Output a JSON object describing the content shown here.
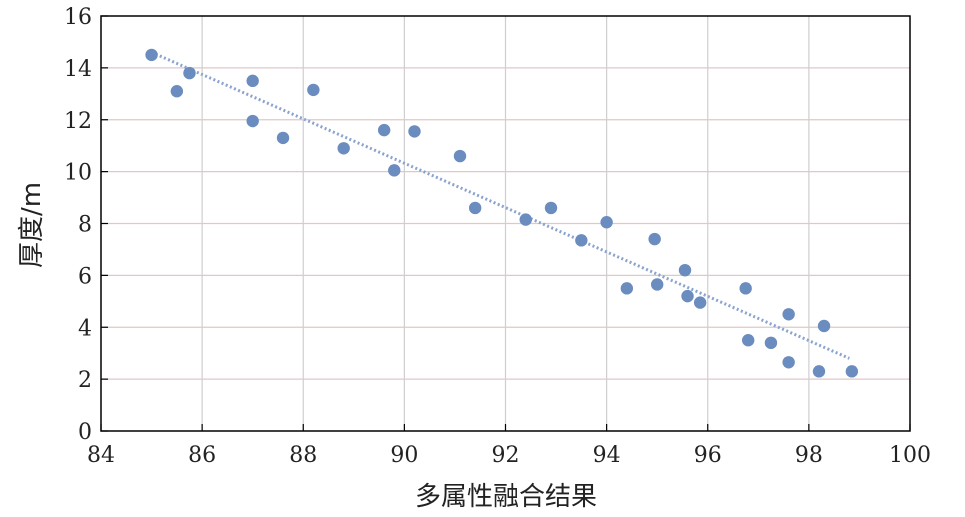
{
  "chart_data": {
    "type": "scatter",
    "xlabel": "多属性融合结果",
    "ylabel": "厚度/m",
    "xlim": [
      84,
      100
    ],
    "ylim": [
      0,
      16
    ],
    "xticks": [
      84,
      86,
      88,
      90,
      92,
      94,
      96,
      98,
      100
    ],
    "yticks": [
      0,
      2,
      4,
      6,
      8,
      10,
      12,
      14,
      16
    ],
    "grid": true,
    "colors": {
      "points": "#6b8cbf",
      "trend": "#8aa3cf",
      "grid_x": "#cfcfcf",
      "grid_y": "#e3c7c7"
    },
    "series": [
      {
        "x": [
          85.0,
          85.5,
          85.75,
          87.0,
          87.0,
          87.6,
          88.2,
          88.8,
          89.6,
          89.8,
          90.2,
          91.1,
          91.4,
          92.4,
          92.9,
          93.5,
          94.0,
          94.4,
          94.95,
          95.0,
          95.55,
          95.6,
          95.85,
          96.75,
          96.8,
          97.25,
          97.6,
          97.6,
          98.2,
          98.3,
          98.85
        ],
        "y": [
          14.5,
          13.1,
          13.8,
          13.5,
          11.95,
          11.3,
          13.15,
          10.9,
          11.6,
          10.05,
          11.55,
          10.6,
          8.6,
          8.15,
          8.6,
          7.35,
          8.05,
          5.5,
          7.4,
          5.65,
          6.2,
          5.2,
          4.95,
          5.5,
          3.5,
          3.4,
          4.5,
          2.65,
          2.3,
          4.05,
          2.3
        ]
      }
    ],
    "trendline": {
      "x": [
        85.0,
        98.8
      ],
      "y": [
        14.6,
        2.8
      ]
    }
  }
}
